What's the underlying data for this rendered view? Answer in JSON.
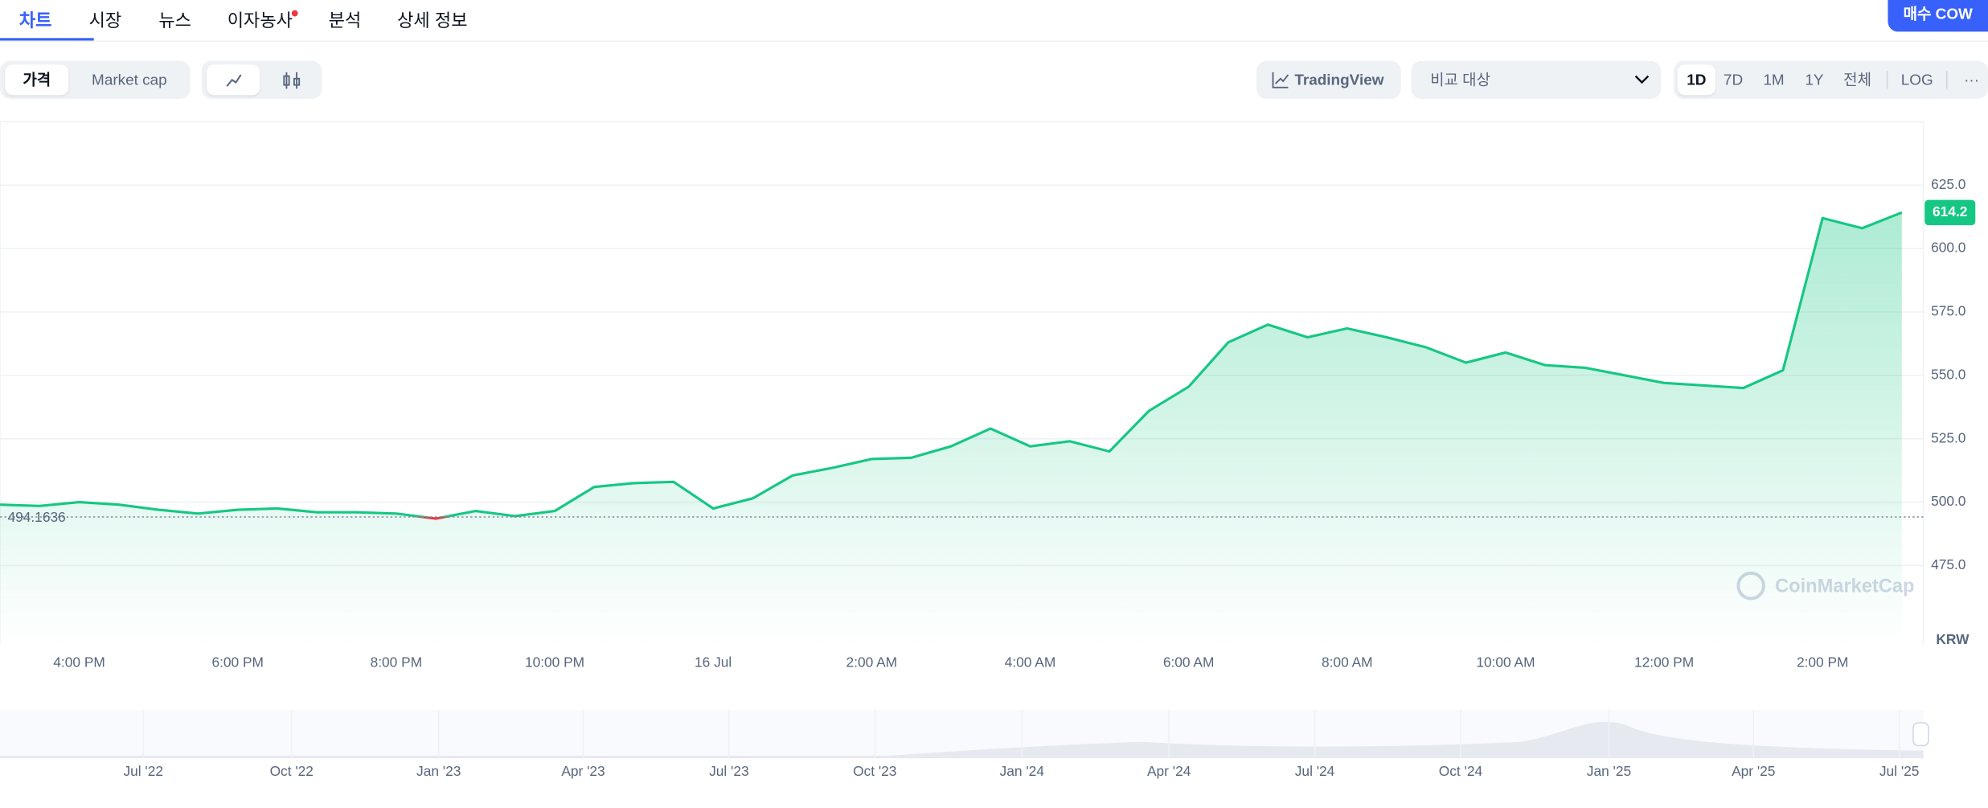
{
  "tabs": [
    "차트",
    "시장",
    "뉴스",
    "이자농사",
    "분석",
    "상세 정보"
  ],
  "buy_button": "매수 COW",
  "toggles": [
    "가격",
    "Market cap"
  ],
  "tradingview": "TradingView",
  "compare": "비교 대상",
  "ranges": [
    "1D",
    "7D",
    "1M",
    "1Y",
    "전체",
    "LOG"
  ],
  "more": "···",
  "chart_data": {
    "type": "line",
    "categories": [
      null,
      null,
      "4:00 PM",
      null,
      null,
      null,
      "6:00 PM",
      null,
      null,
      null,
      "8:00 PM",
      null,
      null,
      null,
      "10:00 PM",
      null,
      null,
      null,
      "16 Jul",
      null,
      null,
      null,
      "2:00 AM",
      null,
      null,
      null,
      "4:00 AM",
      null,
      null,
      null,
      "6:00 AM",
      null,
      null,
      null,
      "8:00 AM",
      null,
      null,
      null,
      "10:00 AM",
      null,
      null,
      null,
      "12:00 PM",
      null,
      null,
      null,
      "2:00 PM",
      null,
      null
    ],
    "values": [
      499,
      498.5,
      500,
      499,
      497,
      495.5,
      497,
      497.5,
      496,
      496,
      495.5,
      493.5,
      496.5,
      494.5,
      496.5,
      506,
      507.5,
      508,
      497.5,
      501.5,
      510.5,
      513.5,
      517,
      517.5,
      522,
      529,
      522,
      524,
      520,
      536,
      545.5,
      563,
      570,
      565,
      568.5,
      565,
      561,
      555,
      559,
      554,
      553,
      550,
      547,
      546,
      545,
      552,
      612,
      608,
      614.2
    ],
    "color": "#16c784",
    "down_color": "#ea3943",
    "reference": 494.1636,
    "ylim": [
      444,
      650
    ],
    "yticks": [
      {
        "value": 475,
        "label": "475.0"
      },
      {
        "value": 500,
        "label": "500.0"
      },
      {
        "value": 525,
        "label": "525.0"
      },
      {
        "value": 550,
        "label": "550.0"
      },
      {
        "value": 575,
        "label": "575.0"
      },
      {
        "value": 600,
        "label": "600.0"
      },
      {
        "value": 625,
        "label": "625.0"
      }
    ],
    "grid": true,
    "currency": "KRW",
    "watermark": "CoinMarketCap"
  },
  "navigator": {
    "labels": [
      "Jul '22",
      "Oct '22",
      "Jan '23",
      "Apr '23",
      "Jul '23",
      "Oct '23",
      "Jan '24",
      "Apr '24",
      "Jul '24",
      "Oct '24",
      "Jan '25",
      "Apr '25",
      "Jul '25"
    ]
  }
}
